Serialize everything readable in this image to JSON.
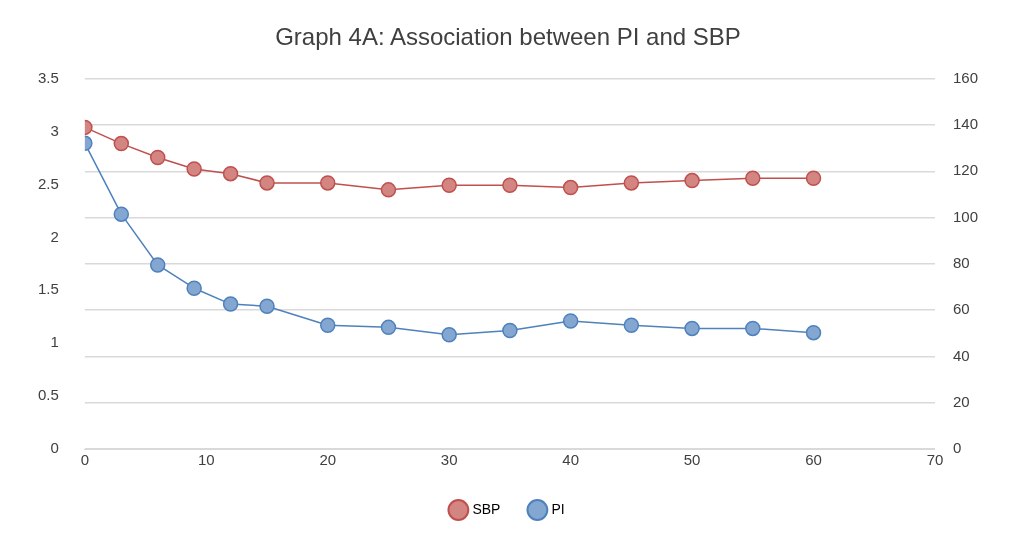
{
  "chart_data": {
    "type": "line",
    "title": "Graph 4A: Association between PI and SBP",
    "x": [
      0,
      3,
      6,
      9,
      12,
      15,
      20,
      25,
      30,
      35,
      40,
      45,
      50,
      55,
      60
    ],
    "series": [
      {
        "name": "SBP",
        "color": "#c0504d",
        "axis": "y2",
        "values": [
          139,
          132,
          126,
          121,
          119,
          115,
          115,
          112,
          114,
          114,
          113,
          115,
          116,
          117,
          117
        ]
      },
      {
        "name": "PI",
        "color": "#4f81bd",
        "values": [
          2.89,
          2.22,
          1.74,
          1.52,
          1.37,
          1.35,
          1.17,
          1.15,
          1.08,
          1.12,
          1.21,
          1.17,
          1.14,
          1.14,
          1.1
        ]
      }
    ],
    "xlim": [
      0,
      70
    ],
    "xticks": [
      0,
      10,
      20,
      30,
      40,
      50,
      60,
      70
    ],
    "ylim": [
      0,
      3.5
    ],
    "yticks": [
      0,
      0.5,
      1,
      1.5,
      2,
      2.5,
      3,
      3.5
    ],
    "y2lim": [
      0,
      160
    ],
    "y2ticks": [
      0,
      20,
      40,
      60,
      80,
      100,
      120,
      140,
      160
    ],
    "grid": "y",
    "legend": "bottom",
    "marker": "circle",
    "line_style": "solid"
  }
}
